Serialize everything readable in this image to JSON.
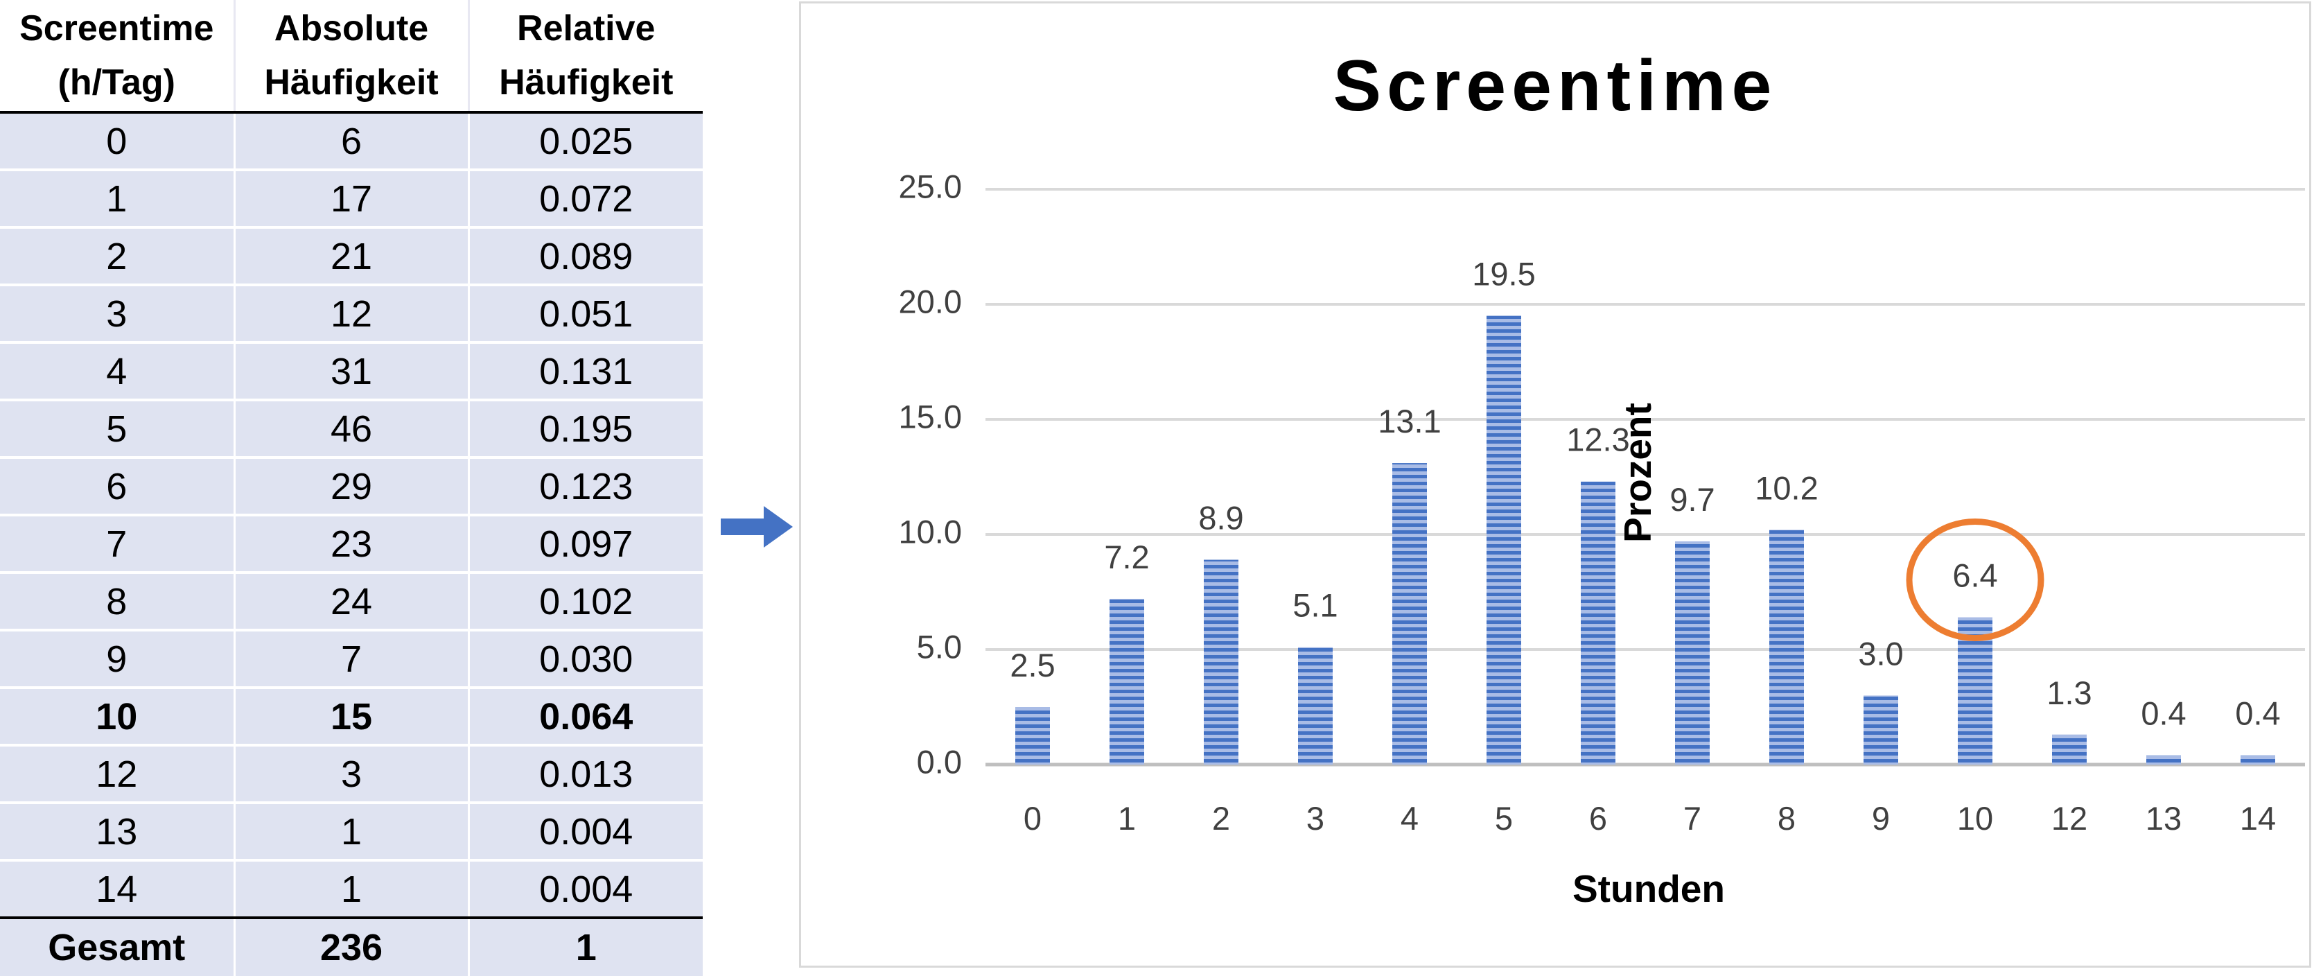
{
  "table": {
    "headers": [
      [
        "Screentime",
        "(h/Tag)"
      ],
      [
        "Absolute",
        "Häufigkeit"
      ],
      [
        "Relative",
        "Häufigkeit"
      ]
    ],
    "rows": [
      [
        "0",
        "6",
        "0.025"
      ],
      [
        "1",
        "17",
        "0.072"
      ],
      [
        "2",
        "21",
        "0.089"
      ],
      [
        "3",
        "12",
        "0.051"
      ],
      [
        "4",
        "31",
        "0.131"
      ],
      [
        "5",
        "46",
        "0.195"
      ],
      [
        "6",
        "29",
        "0.123"
      ],
      [
        "7",
        "23",
        "0.097"
      ],
      [
        "8",
        "24",
        "0.102"
      ],
      [
        "9",
        "7",
        "0.030"
      ],
      [
        "10",
        "15",
        "0.064"
      ],
      [
        "12",
        "3",
        "0.013"
      ],
      [
        "13",
        "1",
        "0.004"
      ],
      [
        "14",
        "1",
        "0.004"
      ]
    ],
    "bold_row_label": "10",
    "total": [
      "Gesamt",
      "236",
      "1"
    ]
  },
  "arrow": {
    "color": "#4472c4",
    "icon": "arrow-right-icon"
  },
  "chart_data": {
    "type": "bar",
    "title": "Screentime",
    "xlabel": "Stunden",
    "ylabel": "Prozent",
    "categories": [
      "0",
      "1",
      "2",
      "3",
      "4",
      "5",
      "6",
      "7",
      "8",
      "9",
      "10",
      "12",
      "13",
      "14"
    ],
    "values": [
      2.5,
      7.2,
      8.9,
      5.1,
      13.1,
      19.5,
      12.3,
      9.7,
      10.2,
      3.0,
      6.4,
      1.3,
      0.4,
      0.4
    ],
    "data_labels": [
      "2.5",
      "7.2",
      "8.9",
      "5.1",
      "13.1",
      "19.5",
      "12.3",
      "9.7",
      "10.2",
      "3.0",
      "6.4",
      "1.3",
      "0.4",
      "0.4"
    ],
    "yticks": [
      "0.0",
      "5.0",
      "10.0",
      "15.0",
      "20.0",
      "25.0"
    ],
    "ylim": [
      0,
      25
    ],
    "grid": true,
    "bar_color": "#4472c4",
    "bar_pattern": "horizontal stripes",
    "highlight": {
      "category": "10",
      "shape": "circle",
      "color": "#ed7d31"
    }
  }
}
